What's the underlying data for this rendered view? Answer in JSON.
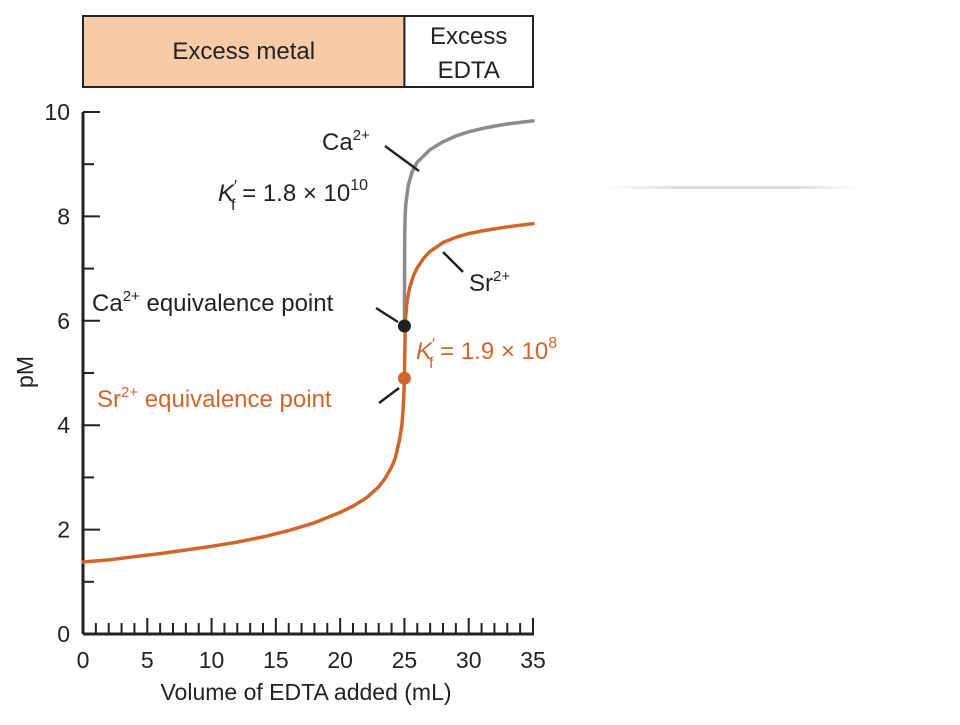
{
  "chart_data": {
    "type": "line",
    "xlabel": "Volume of EDTA added (mL)",
    "ylabel": "pM",
    "xlim": [
      0,
      35
    ],
    "ylim": [
      0,
      10
    ],
    "x_ticks": [
      0,
      5,
      10,
      15,
      20,
      25,
      30,
      35
    ],
    "y_ticks": [
      0,
      2,
      4,
      6,
      8,
      10
    ],
    "grid": false,
    "regions": [
      {
        "label": "Excess metal",
        "range": [
          0,
          25
        ],
        "color": "#f8cba8"
      },
      {
        "label_lines": [
          "Excess",
          "EDTA"
        ],
        "range": [
          25,
          35
        ],
        "color": "#ffffff"
      }
    ],
    "series": [
      {
        "name": "Ca2+",
        "color": "#8c8c8c",
        "x": [
          25.0,
          25.02,
          25.05,
          25.1,
          25.3,
          25.6,
          26.0,
          27.0,
          28.0,
          29.0,
          30.0,
          31.0,
          32.0,
          33.0,
          34.0,
          35.0
        ],
        "y": [
          5.9,
          7.6,
          7.97,
          8.22,
          8.6,
          8.85,
          9.04,
          9.28,
          9.43,
          9.54,
          9.62,
          9.68,
          9.73,
          9.77,
          9.8,
          9.83
        ]
      },
      {
        "name": "Sr2+",
        "color": "#d0662a",
        "x": [
          0,
          2,
          4,
          6,
          8,
          10,
          12,
          14,
          16,
          18,
          20,
          21,
          22,
          23,
          23.5,
          24,
          24.3,
          24.6,
          24.8,
          24.9,
          24.95,
          25.0,
          25.03,
          25.06,
          25.1,
          25.2,
          25.4,
          25.7,
          26.0,
          26.5,
          27.0,
          28.0,
          29.0,
          30.0,
          31.0,
          32.0,
          33.0,
          34.0,
          35.0
        ],
        "y": [
          1.38,
          1.42,
          1.48,
          1.54,
          1.61,
          1.68,
          1.76,
          1.86,
          1.98,
          2.13,
          2.33,
          2.45,
          2.6,
          2.82,
          2.98,
          3.2,
          3.38,
          3.7,
          4.0,
          4.3,
          4.55,
          4.9,
          5.4,
          5.8,
          6.08,
          6.36,
          6.63,
          6.86,
          7.02,
          7.2,
          7.33,
          7.5,
          7.6,
          7.67,
          7.72,
          7.76,
          7.8,
          7.83,
          7.86
        ]
      }
    ],
    "points": [
      {
        "name": "Ca2+ equivalence point",
        "x": 25,
        "y": 5.9,
        "color": "#222222"
      },
      {
        "name": "Sr2+ equivalence point",
        "x": 25,
        "y": 4.9,
        "color": "#d0662a"
      }
    ],
    "annotations": {
      "ca_label": {
        "base": "Ca",
        "sup": "2+",
        "color": "#222222"
      },
      "ca_kf": {
        "k": "K",
        "prime": "′",
        "sub": "f",
        "text": " = 1.8 × 10",
        "sup": "10",
        "color": "#222222"
      },
      "sr_label": {
        "base": "Sr",
        "sup": "2+",
        "color": "#222222"
      },
      "sr_kf": {
        "k": "K",
        "prime": "′",
        "sub": "f",
        "text": " = 1.9 × 10",
        "sup": "8",
        "color": "#d0662a"
      },
      "ca_eq": {
        "base": "Ca",
        "sup": "2+",
        "text": " equivalence point",
        "color": "#222222"
      },
      "sr_eq": {
        "base": "Sr",
        "sup": "2+",
        "text": " equivalence point",
        "color": "#d0662a"
      }
    }
  }
}
